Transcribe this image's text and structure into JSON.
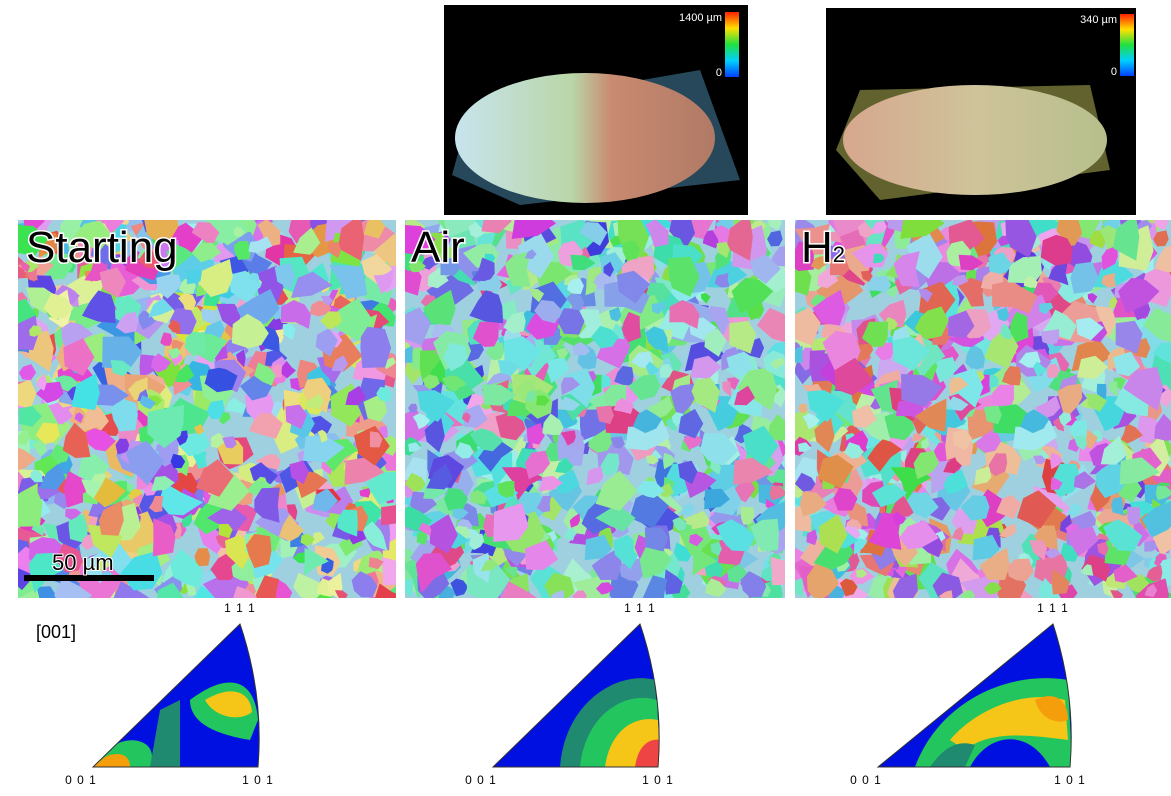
{
  "profiles": [
    {
      "scale_max": "1400 µm",
      "scale_min": "0"
    },
    {
      "scale_max": "340 µm",
      "scale_min": "0"
    }
  ],
  "maps": [
    {
      "label": "Starting"
    },
    {
      "label": "Air"
    },
    {
      "label": "H",
      "label_subscript": "2"
    }
  ],
  "scale_bar": "50 µm",
  "ipf": {
    "direction": "[001]",
    "triangles": [
      {
        "top": "1 1 1",
        "left": "0 0 1",
        "right": "1 0 1"
      },
      {
        "top": "1 1 1",
        "left": "0 0 1",
        "right": "1 0 1"
      },
      {
        "top": "1 1 1",
        "left": "0 0 1",
        "right": "1 0 1"
      }
    ]
  }
}
